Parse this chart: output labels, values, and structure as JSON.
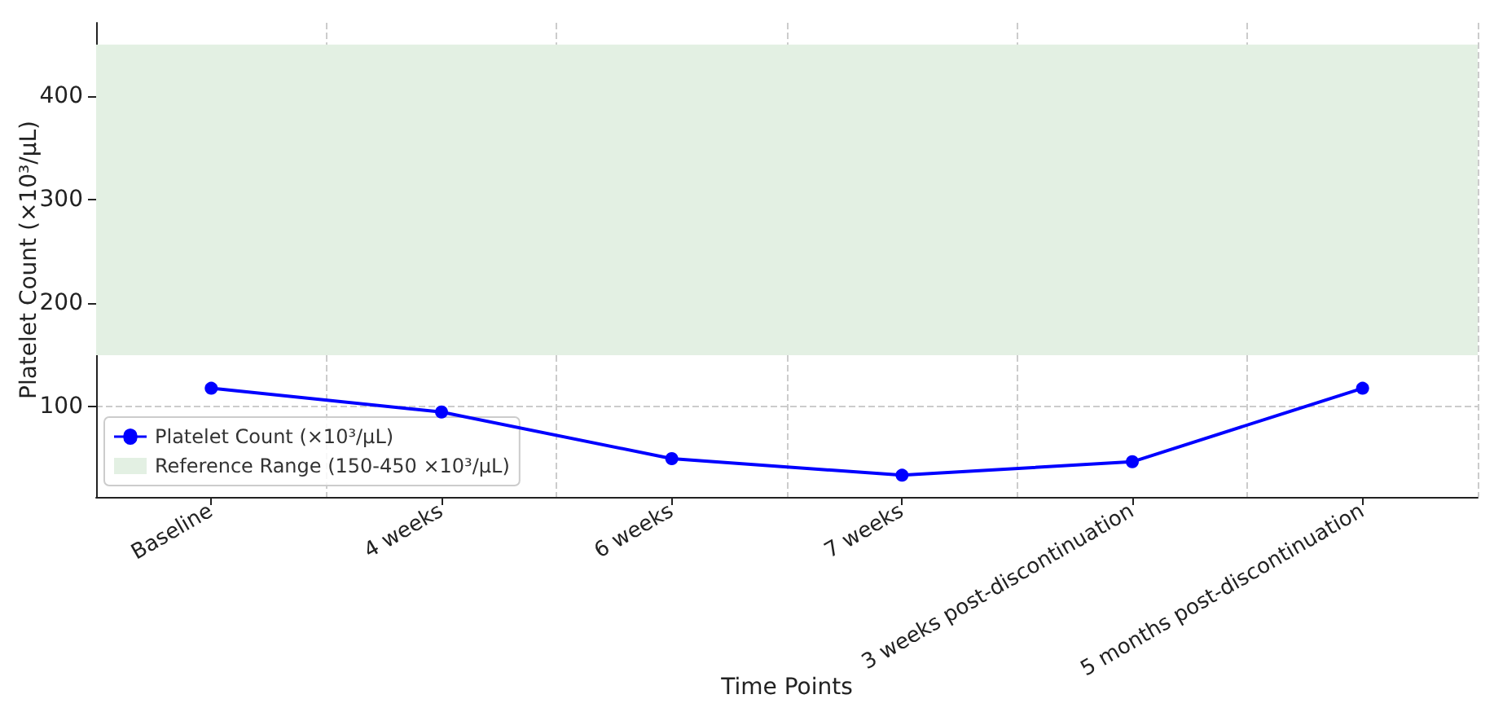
{
  "chart_data": {
    "type": "line",
    "xlabel": "Time Points",
    "ylabel": "Platelet Count (×10³/μL)",
    "categories": [
      "Baseline",
      "4 weeks",
      "6 weeks",
      "7 weeks",
      "3 weeks post-discontinuation",
      "5 months post-discontinuation"
    ],
    "series": [
      {
        "name": "Platelet Count (×10³/μL)",
        "color": "#0000ff",
        "values": [
          118,
          95,
          50,
          34,
          47,
          118
        ]
      }
    ],
    "bands": [
      {
        "axis": "y",
        "from": 150,
        "to": 450,
        "label": "Reference Range (150-450 ×10³/μL)",
        "color": "#e3f0e3"
      }
    ],
    "ylim": [
      13,
      471
    ],
    "yticks": [
      100,
      200,
      300,
      400
    ],
    "grid": true,
    "legend": "bottom left",
    "marker": "circle",
    "line_style": "solid"
  }
}
